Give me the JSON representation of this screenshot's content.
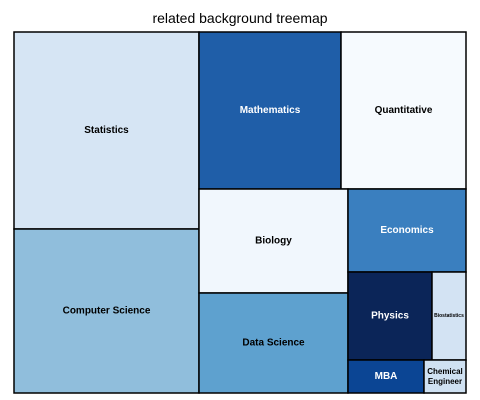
{
  "chart_data": {
    "type": "treemap",
    "title": "related background treemap",
    "items": [
      {
        "label": "Statistics",
        "color": "#d6e5f4"
      },
      {
        "label": "Computer Science",
        "color": "#90bedc"
      },
      {
        "label": "Mathematics",
        "color": "#1f5ea8"
      },
      {
        "label": "Quantitative",
        "color": "#f6fafe"
      },
      {
        "label": "Biology",
        "color": "#f1f7fd"
      },
      {
        "label": "Data Science",
        "color": "#5ea1cf"
      },
      {
        "label": "Economics",
        "color": "#3a7fbf"
      },
      {
        "label": "Physics",
        "color": "#0b2558"
      },
      {
        "label": "Biostatistics",
        "color": "#d3e3f3"
      },
      {
        "label": "MBA",
        "color": "#0b4594"
      },
      {
        "label": "Chemical Engineer",
        "color": "#cfe1f2"
      }
    ]
  }
}
